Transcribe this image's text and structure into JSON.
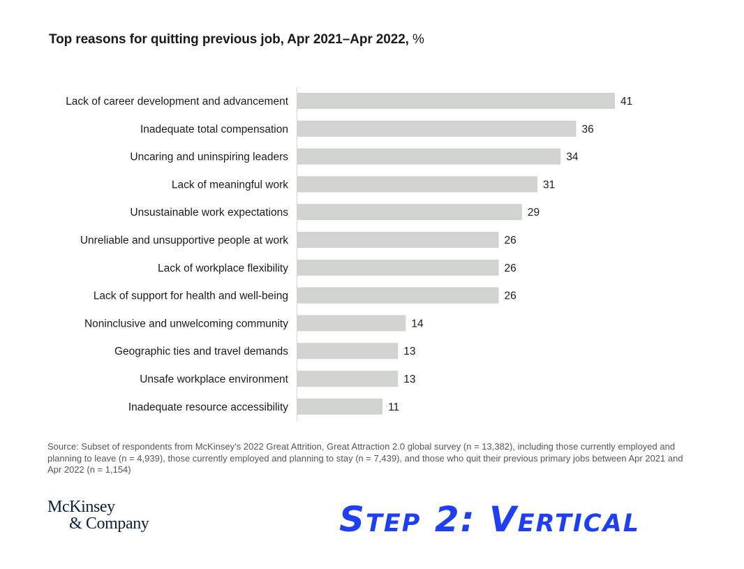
{
  "title": {
    "main": "Top reasons for quitting previous job, Apr 2021–Apr 2022, ",
    "unit": "%"
  },
  "colors": {
    "bar": "#d0d3ce",
    "axis": "#d6d6d6",
    "text": "#1a1a1a"
  },
  "chart_data": {
    "type": "bar",
    "orientation": "horizontal",
    "title": "Top reasons for quitting previous job, Apr 2021–Apr 2022, %",
    "categories": [
      "Lack of career development and advancement",
      "Inadequate total compensation",
      "Uncaring and uninspiring leaders",
      "Lack of meaningful work",
      "Unsustainable work expectations",
      "Unreliable and unsupportive people at work",
      "Lack of workplace flexibility",
      "Lack of support for health and well-being",
      "Noninclusive and unwelcoming community",
      "Geographic ties and travel demands",
      "Unsafe workplace environment",
      "Inadequate resource accessibility"
    ],
    "values": [
      41,
      36,
      34,
      31,
      29,
      26,
      26,
      26,
      14,
      13,
      13,
      11
    ],
    "xlim": [
      0,
      41
    ],
    "grid": false,
    "data_labels": true
  },
  "source": "Source: Subset of respondents from McKinsey’s 2022 Great Attrition, Great Attraction 2.0 global survey (n = 13,382), including those currently employed and planning to leave (n = 4,939), those currently employed and planning to stay (n = 7,439), and those who quit their previous primary jobs between Apr 2021 and Apr 2022 (n = 1,154)",
  "logo": {
    "line1": "McKinsey",
    "line2": "& Company"
  },
  "annotation": "Step 2: Vertical"
}
